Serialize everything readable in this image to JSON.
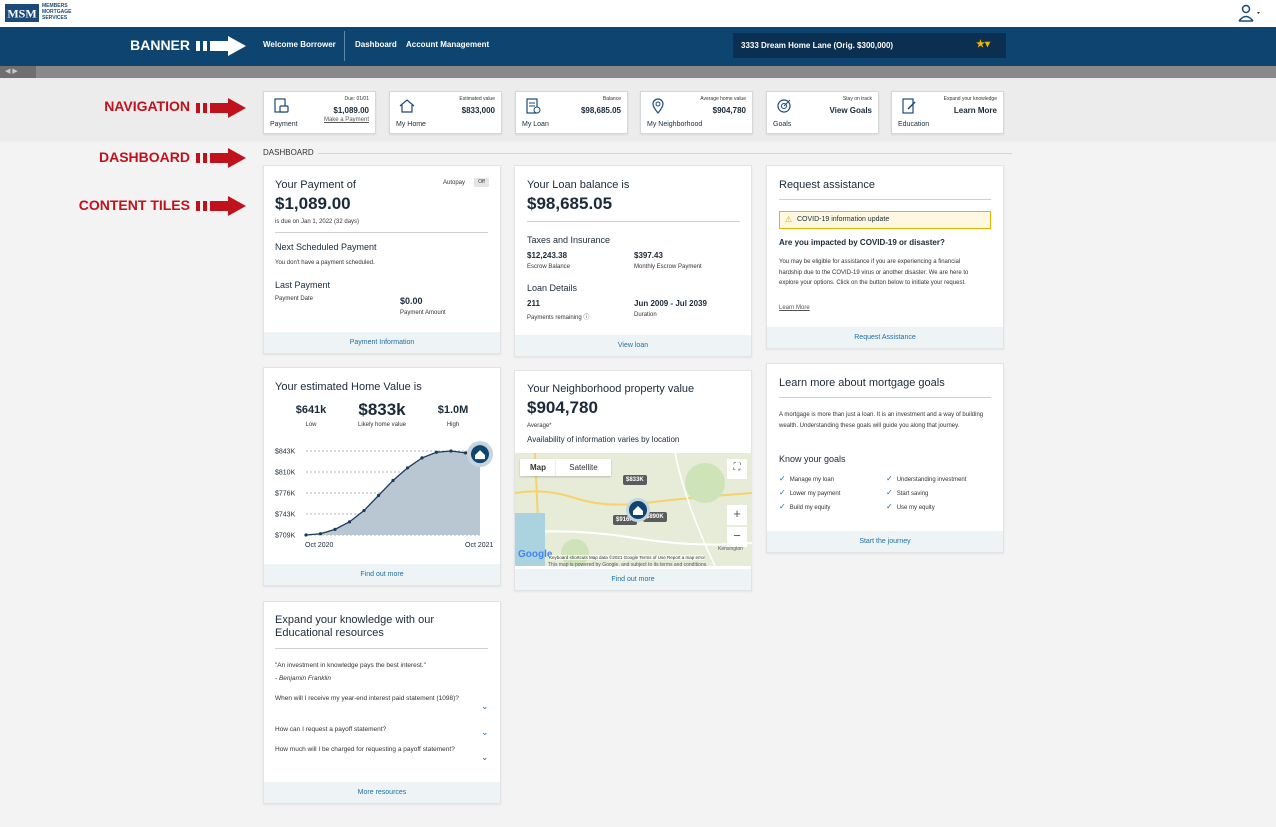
{
  "brand": {
    "logo_text": "MSM",
    "company": "MEMBERS MORTGAGE SERVICES"
  },
  "banner": {
    "welcome": "Welcome Borrower",
    "links": [
      "Dashboard",
      "Account Management"
    ],
    "property": "3333 Dream Home Lane (Orig. $300,000)"
  },
  "annotations": {
    "banner": "BANNER",
    "navigation": "NAVIGATION",
    "dashboard": "DASHBOARD",
    "content_tiles": "CONTENT TILES"
  },
  "nav_cards": [
    {
      "label": "Payment",
      "small": "Due: 01/01",
      "value": "$1,089.00",
      "link": "Make a Payment",
      "icon": "payment-icon"
    },
    {
      "label": "My Home",
      "small": "Estimated value",
      "value": "$833,000",
      "icon": "home-icon"
    },
    {
      "label": "My Loan",
      "small": "Balance",
      "value": "$98,685.05",
      "icon": "loan-document-icon"
    },
    {
      "label": "My Neighborhood",
      "small": "Average home value",
      "value": "$904,780",
      "icon": "location-pin-icon"
    },
    {
      "label": "Goals",
      "small": "Stay on track",
      "value": "View Goals",
      "icon": "target-icon"
    },
    {
      "label": "Education",
      "small": "Expand your knowledge",
      "value": "Learn More",
      "icon": "education-icon"
    }
  ],
  "dashboard_label": "DASHBOARD",
  "payment_tile": {
    "title": "Your Payment of",
    "autopay_label": "Autopay",
    "autopay_state": "Off",
    "amount": "$1,089.00",
    "due": "is due on Jan 1, 2022 (32 days)",
    "next_heading": "Next Scheduled Payment",
    "next_text": "You don't have a payment scheduled.",
    "last_heading": "Last Payment",
    "last_date_label": "Payment Date",
    "last_amount": "$0.00",
    "last_amount_label": "Payment Amount",
    "footer": "Payment Information"
  },
  "loan_tile": {
    "title": "Your Loan balance is",
    "amount": "$98,685.05",
    "taxes_heading": "Taxes and Insurance",
    "escrow_balance": "$12,243.38",
    "escrow_balance_label": "Escrow Balance",
    "monthly_escrow": "$397.43",
    "monthly_escrow_label": "Monthly Escrow Payment",
    "details_heading": "Loan Details",
    "payments_remaining": "211",
    "payments_remaining_label": "Payments remaining",
    "duration": "Jun 2009 - Jul 2039",
    "duration_label": "Duration",
    "footer": "View loan"
  },
  "assist_tile": {
    "title": "Request assistance",
    "alert": "COVID-19 information update",
    "question": "Are you impacted by COVID-19 or disaster?",
    "body": "You may be eligible for assistance if you are experiencing a financial hardship due to the COVID-19 virus or another disaster. We are here to explore your options. Click on the button below to initiate your request.",
    "learn_more": "Learn More",
    "footer": "Request Assistance"
  },
  "home_tile": {
    "title": "Your estimated Home Value is",
    "low_value": "$641k",
    "low_label": "Low",
    "likely_value": "$833k",
    "likely_label": "Likely home value",
    "high_value": "$1.0M",
    "high_label": "High",
    "footer": "Find out more"
  },
  "neighborhood_tile": {
    "title": "Your Neighborhood property value",
    "amount": "$904,780",
    "average_label": "Average*",
    "note": "Availability of information varies by location",
    "map_tabs": [
      "Map",
      "Satellite"
    ],
    "pins": [
      "$833K",
      "$916K",
      "$890K"
    ],
    "map_attribution": "Keyboard shortcuts   Map data ©2021 Google   Terms of Use   Report a map error",
    "map_place": "Kensington",
    "map_notice": "This map is powered by Google, and subject to its terms and conditions.",
    "footer": "Find out more"
  },
  "goals_tile": {
    "title": "Learn more about mortgage goals",
    "intro": "A mortgage is more than just a loan. It is an investment and a way of building wealth. Understanding these goals will guide you along that journey.",
    "know_heading": "Know your goals",
    "goals": [
      "Manage my loan",
      "Understanding investment",
      "Lower my payment",
      "Start saving",
      "Build my equity",
      "Use my equity"
    ],
    "footer": "Start the journey"
  },
  "edu_tile": {
    "title": "Expand your knowledge with our Educational resources",
    "quote": "\"An investment in knowledge pays the best interest.\"",
    "author": "- Benjamin Franklin",
    "faqs": [
      "When will I receive my year-end interest paid statement (1098)?",
      "How can I request a payoff statement?",
      "How much will I be charged for requesting a payoff statement?"
    ],
    "footer": "More resources"
  },
  "chart_data": {
    "type": "area",
    "x": [
      "Oct 2020",
      "",
      "",
      "",
      "",
      "",
      "",
      "",
      "",
      "",
      "",
      "",
      "Oct 2021"
    ],
    "xticks": [
      "Oct 2020",
      "Oct 2021"
    ],
    "values": [
      709,
      711,
      718,
      730,
      748,
      772,
      796,
      816,
      832,
      841,
      843,
      840,
      838
    ],
    "yticks": [
      "$843K",
      "$810K",
      "$776K",
      "$743K",
      "$709K"
    ],
    "ylim": [
      709,
      843
    ],
    "grid": true,
    "colors": {
      "line": "#1b3a5a",
      "fill": "#b9c7d2",
      "marker": "#0e4470"
    }
  }
}
